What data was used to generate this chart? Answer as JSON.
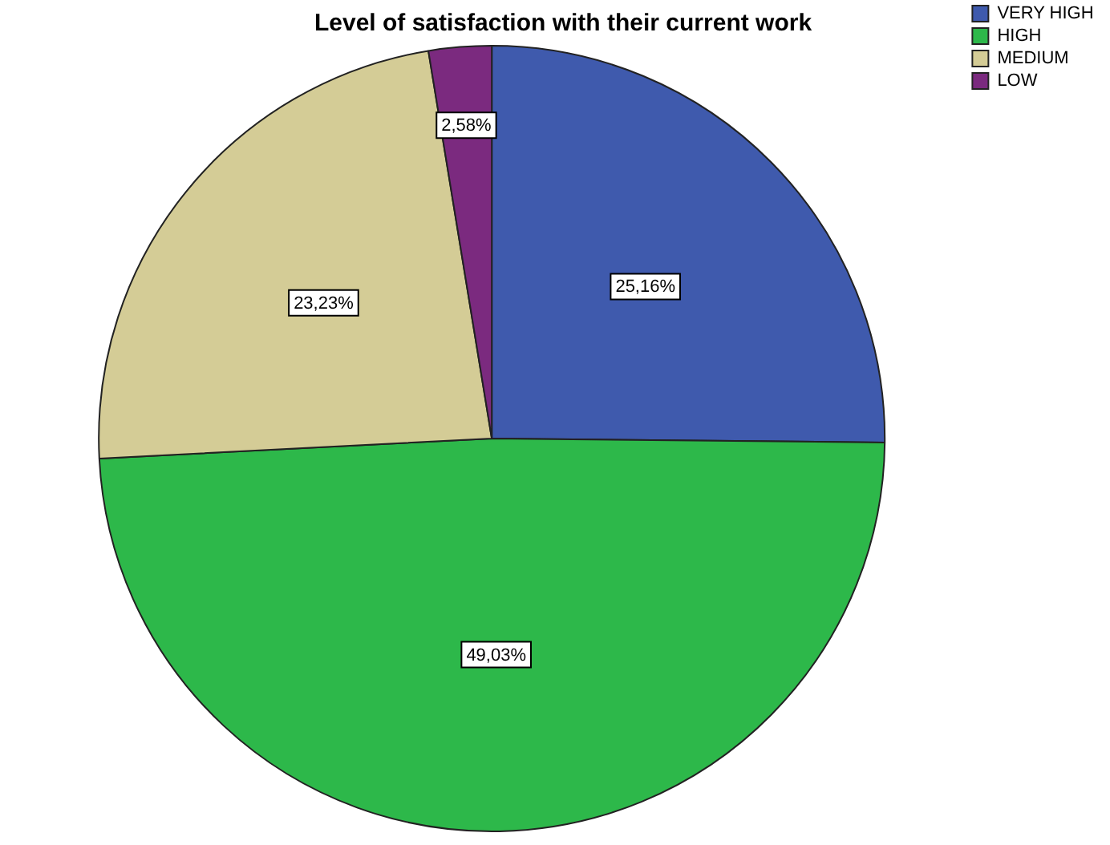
{
  "chart_data": {
    "type": "pie",
    "title": "Level of satisfaction with their current work",
    "categories": [
      "VERY HIGH",
      "HIGH",
      "MEDIUM",
      "LOW"
    ],
    "values": [
      25.16,
      49.03,
      23.23,
      2.58
    ],
    "colors": [
      "#3f5aad",
      "#2db84a",
      "#d4cc96",
      "#7b2a7f"
    ],
    "value_labels": [
      "25,16%",
      "49,03%",
      "23,23%",
      "2,58%"
    ],
    "legend": "top right"
  }
}
